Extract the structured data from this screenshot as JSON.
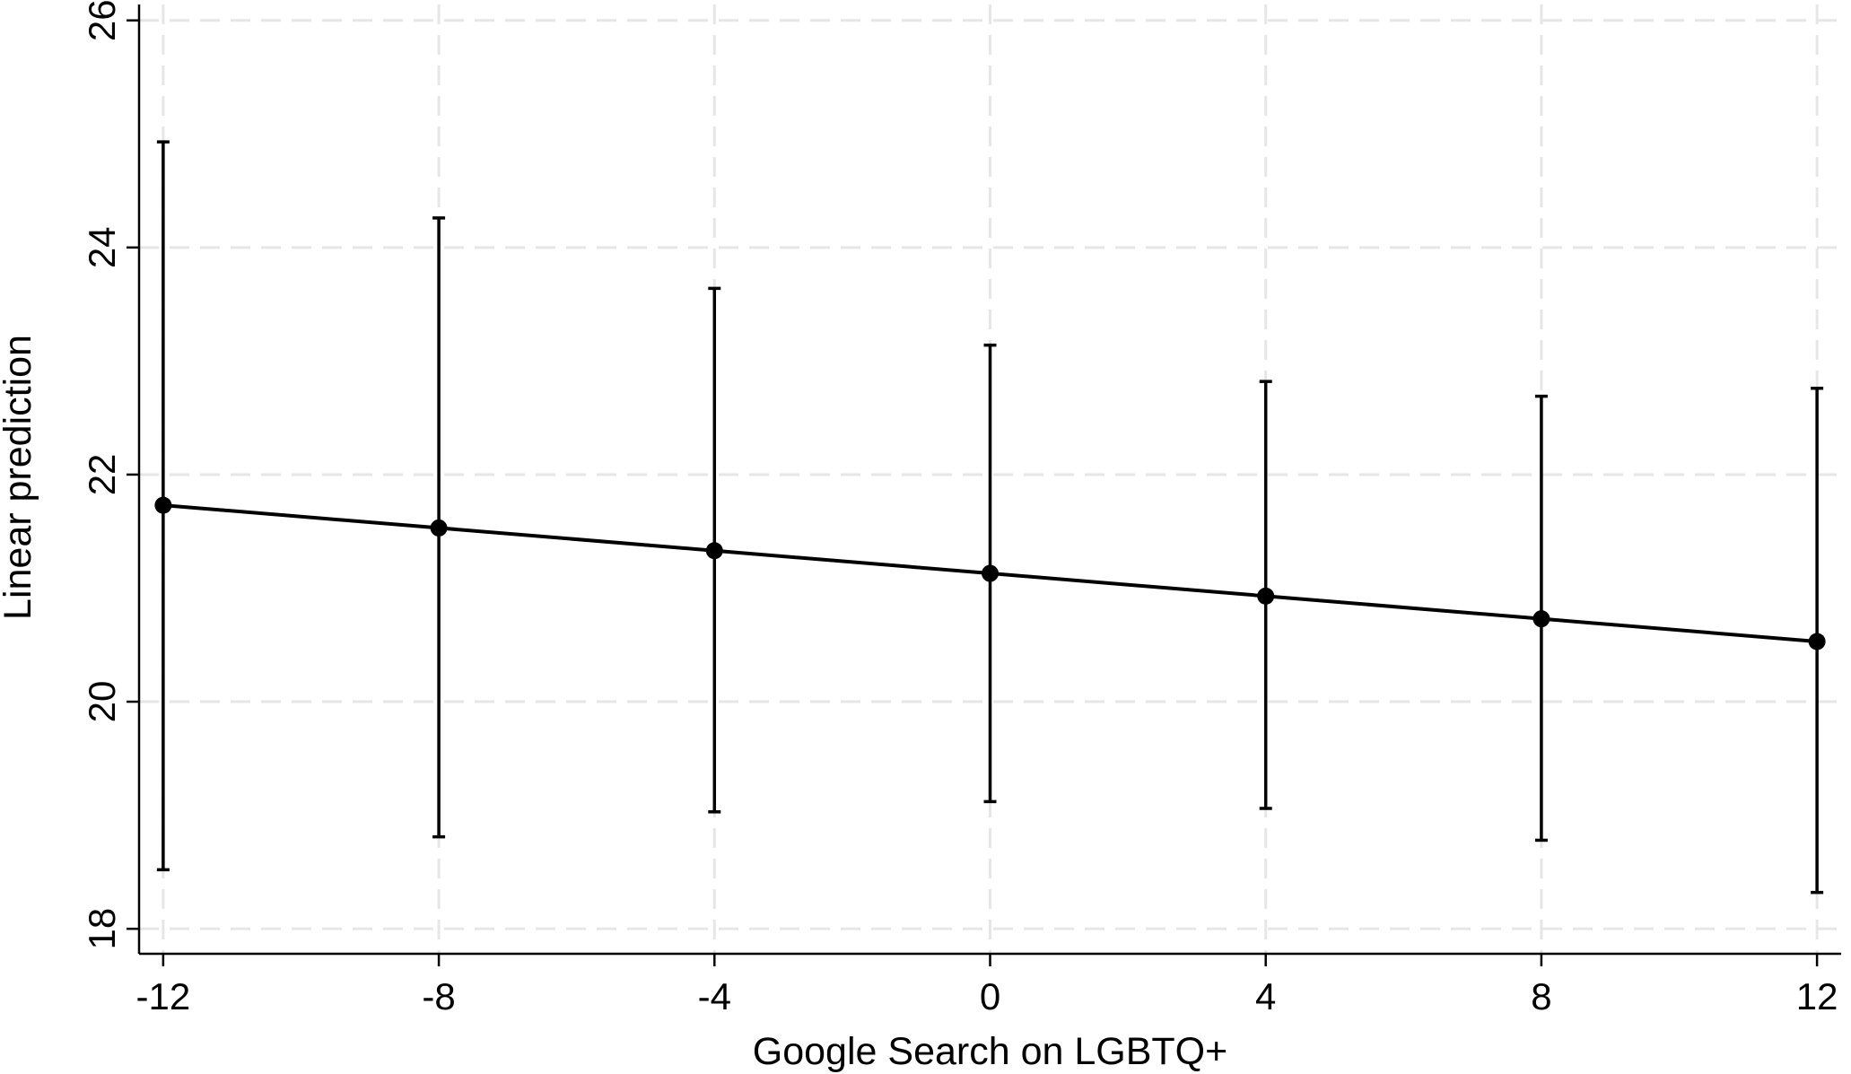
{
  "chart_data": {
    "type": "line",
    "title": "",
    "xlabel": "Google Search on LGBTQ+",
    "ylabel": "Linear prediction",
    "x_ticks": [
      "-12",
      "-8",
      "-4",
      "0",
      "4",
      "8",
      "12"
    ],
    "y_ticks": [
      "18",
      "20",
      "22",
      "24",
      "26"
    ],
    "xlim": [
      -12.35,
      12.35
    ],
    "ylim": [
      17.78,
      26.14
    ],
    "grid": true,
    "legend": "none",
    "series": [
      {
        "x": [
          -12,
          -8,
          -4,
          0,
          4,
          8,
          12
        ],
        "y": [
          21.73,
          21.53,
          21.33,
          21.13,
          20.93,
          20.73,
          20.53
        ],
        "ci_lower": [
          18.52,
          18.81,
          19.03,
          19.12,
          19.06,
          18.78,
          18.32
        ],
        "ci_upper": [
          24.93,
          24.26,
          23.64,
          23.14,
          22.82,
          22.69,
          22.76
        ]
      }
    ]
  }
}
